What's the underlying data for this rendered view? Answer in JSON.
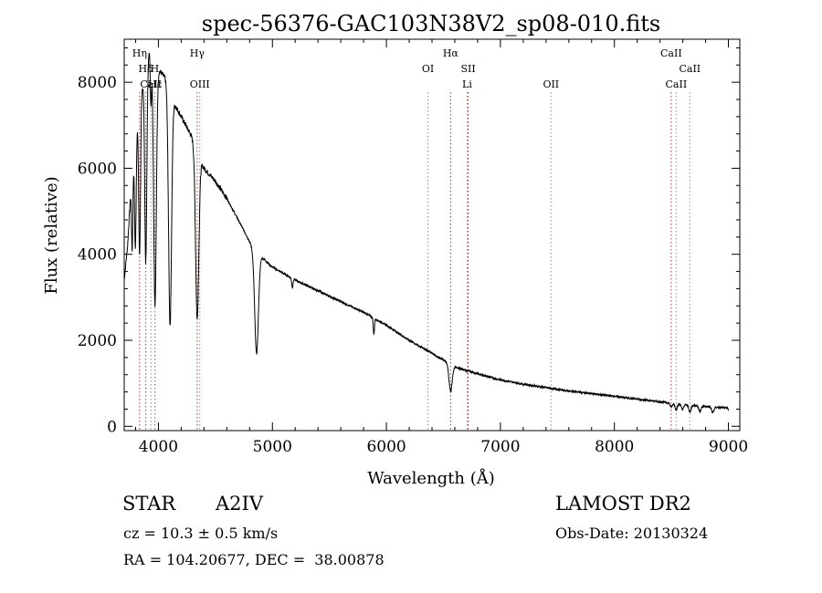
{
  "chart_data": {
    "type": "line",
    "title": "spec-56376-GAC103N38V2_sp08-010.fits",
    "xlabel": "Wavelength (Å)",
    "ylabel": "Flux (relative)",
    "xlim": [
      3700,
      9100
    ],
    "ylim": [
      -100,
      9000
    ],
    "x_ticks": [
      4000,
      5000,
      6000,
      7000,
      8000,
      9000
    ],
    "y_ticks": [
      0,
      2000,
      4000,
      6000,
      8000
    ],
    "grid": false,
    "continuum": [
      [
        3700,
        3400
      ],
      [
        3730,
        4200
      ],
      [
        3760,
        5600
      ],
      [
        3800,
        6800
      ],
      [
        3840,
        7600
      ],
      [
        3880,
        8200
      ],
      [
        3920,
        8700
      ],
      [
        3960,
        8600
      ],
      [
        4000,
        8300
      ],
      [
        4060,
        8100
      ],
      [
        4120,
        7600
      ],
      [
        4200,
        7200
      ],
      [
        4280,
        6800
      ],
      [
        4330,
        6500
      ],
      [
        4360,
        6200
      ],
      [
        4400,
        6000
      ],
      [
        4500,
        5700
      ],
      [
        4600,
        5300
      ],
      [
        4700,
        4800
      ],
      [
        4800,
        4300
      ],
      [
        4850,
        4000
      ],
      [
        4900,
        3950
      ],
      [
        5000,
        3700
      ],
      [
        5200,
        3400
      ],
      [
        5400,
        3150
      ],
      [
        5600,
        2900
      ],
      [
        5800,
        2650
      ],
      [
        6000,
        2350
      ],
      [
        6200,
        2000
      ],
      [
        6400,
        1700
      ],
      [
        6600,
        1380
      ],
      [
        6800,
        1220
      ],
      [
        7000,
        1080
      ],
      [
        7200,
        980
      ],
      [
        7400,
        900
      ],
      [
        7600,
        820
      ],
      [
        7800,
        760
      ],
      [
        8000,
        700
      ],
      [
        8200,
        630
      ],
      [
        8400,
        570
      ],
      [
        8600,
        510
      ],
      [
        8800,
        460
      ],
      [
        9000,
        420
      ]
    ],
    "absorption_lines": [
      {
        "x": 3770,
        "depth": 1800,
        "width": 6
      },
      {
        "x": 3798,
        "depth": 2600,
        "width": 7
      },
      {
        "x": 3835,
        "depth": 3500,
        "width": 8
      },
      {
        "x": 3889,
        "depth": 4500,
        "width": 9
      },
      {
        "x": 3934,
        "depth": 1200,
        "width": 5
      },
      {
        "x": 3970,
        "depth": 5700,
        "width": 12
      },
      {
        "x": 4102,
        "depth": 5400,
        "width": 13
      },
      {
        "x": 4340,
        "depth": 3900,
        "width": 14
      },
      {
        "x": 4861,
        "depth": 2300,
        "width": 16
      },
      {
        "x": 5175,
        "depth": 200,
        "width": 6
      },
      {
        "x": 5890,
        "depth": 380,
        "width": 5
      },
      {
        "x": 6563,
        "depth": 620,
        "width": 14
      },
      {
        "x": 8498,
        "depth": 90,
        "width": 10
      },
      {
        "x": 8542,
        "depth": 140,
        "width": 10
      },
      {
        "x": 8598,
        "depth": 120,
        "width": 10
      },
      {
        "x": 8662,
        "depth": 160,
        "width": 10
      },
      {
        "x": 8750,
        "depth": 120,
        "width": 10
      },
      {
        "x": 8863,
        "depth": 130,
        "width": 10
      },
      {
        "x": 9015,
        "depth": 120,
        "width": 10
      }
    ],
    "line_markers": [
      {
        "label": "Hη",
        "x": 3835,
        "row": 1,
        "color": "#e02020"
      },
      {
        "label": "Hδ",
        "x": 3889,
        "row": 2,
        "color": "#e02020"
      },
      {
        "label": "Hε",
        "x": 3970,
        "row": 3,
        "color": "#e02020"
      },
      {
        "label": "CaII",
        "x": 3934,
        "row": 3,
        "color": "#909090"
      },
      {
        "label": "H",
        "x": 3968,
        "row": 2,
        "color": "#909090"
      },
      {
        "label": "Hγ",
        "x": 4340,
        "row": 1,
        "color": "#e02020"
      },
      {
        "label": "OIII",
        "x": 4363,
        "row": 3,
        "color": "#909090"
      },
      {
        "label": "OI",
        "x": 6364,
        "row": 2,
        "color": "#909090"
      },
      {
        "label": "Hα",
        "x": 6563,
        "row": 1,
        "color": "#e02020"
      },
      {
        "label": "SII",
        "x": 6717,
        "row": 2,
        "color": "#e02020"
      },
      {
        "label": "Li",
        "x": 6708,
        "row": 3,
        "color": "#909090"
      },
      {
        "label": "OII",
        "x": 7444,
        "row": 3,
        "color": "#909090"
      },
      {
        "label": "CaII",
        "x": 8498,
        "row": 1,
        "color": "#e02020"
      },
      {
        "label": "CaII",
        "x": 8542,
        "row": 3,
        "color": "#909090"
      },
      {
        "label": "CaII",
        "x": 8662,
        "row": 2,
        "color": "#909090"
      }
    ]
  },
  "info": {
    "obj_class": "STAR",
    "subclass": "A2IV",
    "survey": "LAMOST DR2",
    "cz": "cz = 10.3 ± 0.5 km/s",
    "obs_date": "Obs-Date: 20130324",
    "coords": "RA = 104.20677, DEC =  38.00878"
  }
}
